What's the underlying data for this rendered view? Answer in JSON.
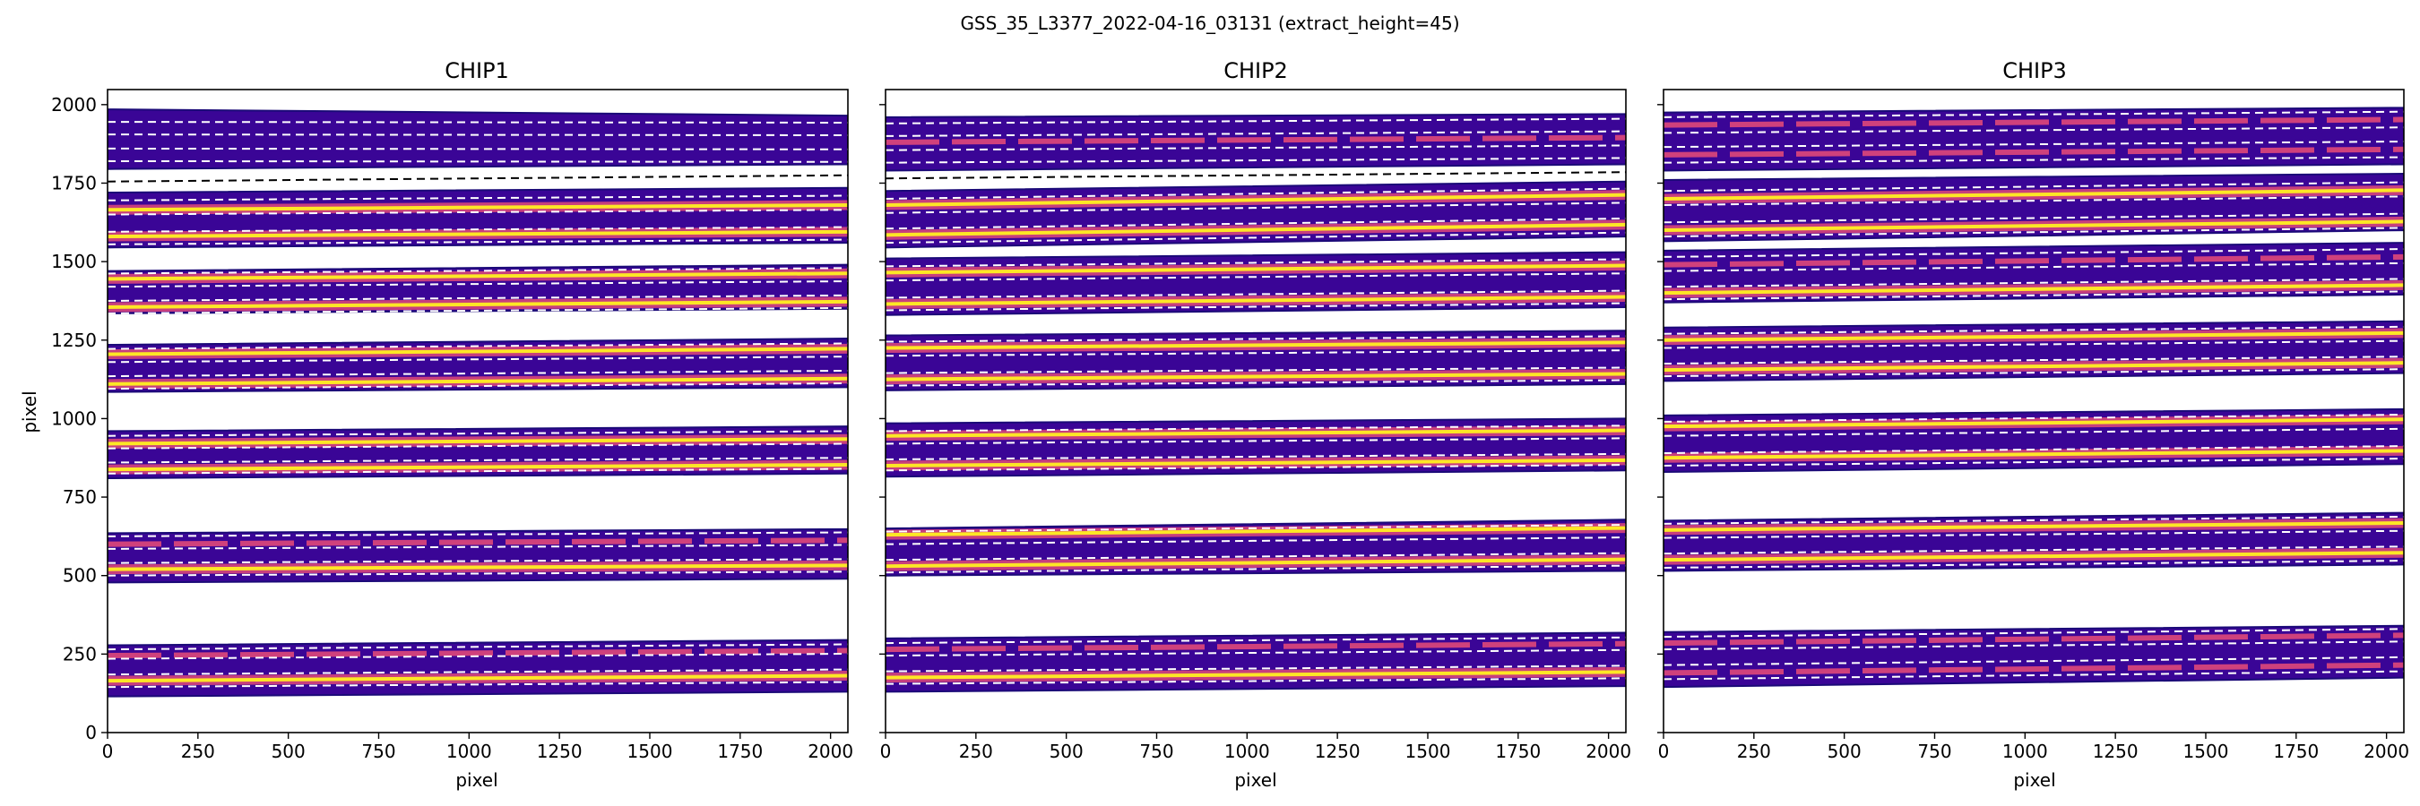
{
  "chart_data": {
    "type": "heatmap",
    "suptitle": "GSS_35_L3377_2022-04-16_03131  (extract_height=45)",
    "colormap": "plasma",
    "colors": {
      "band_fill": "#3a0596",
      "band_edge": "#1b0a78",
      "bright_line": "#fde725",
      "mid_line": "#e0487a",
      "trace_line": "#ffffff",
      "gap_trace_line": "#000000",
      "background": "#ffffff"
    },
    "shared_y": true,
    "xlim": [
      0,
      2048
    ],
    "ylim": [
      0,
      2048
    ],
    "x_ticks": [
      0,
      250,
      500,
      750,
      1000,
      1250,
      1500,
      1750,
      2000
    ],
    "y_ticks": [
      0,
      250,
      500,
      750,
      1000,
      1250,
      1500,
      1750,
      2000
    ],
    "x_tick_labels": [
      "0",
      "250",
      "500",
      "750",
      "1000",
      "1250",
      "1500",
      "1750",
      "2000"
    ],
    "y_tick_labels": [
      "0",
      "250",
      "500",
      "750",
      "1000",
      "1250",
      "1500",
      "1750",
      "2000"
    ],
    "xlabel": "pixel",
    "ylabel": "pixel",
    "panels": [
      {
        "title": "CHIP1",
        "orders": [
          {
            "y0_left": 115,
            "y0_right": 130,
            "y1_left": 278,
            "y1_right": 295,
            "traces": [
              145,
              185,
              235,
              265
            ],
            "bright": [
              165
            ],
            "mid": [
              245
            ]
          },
          {
            "y0_left": 478,
            "y0_right": 490,
            "y1_left": 635,
            "y1_right": 648,
            "traces": [
              500,
              540,
              585,
              625
            ],
            "bright": [
              520
            ],
            "mid": [
              600
            ]
          },
          {
            "y0_left": 810,
            "y0_right": 825,
            "y1_left": 960,
            "y1_right": 975,
            "traces": [
              825,
              860,
              905,
              945
            ],
            "bright": [
              838,
              920
            ],
            "mid": []
          },
          {
            "y0_left": 1085,
            "y0_right": 1100,
            "y1_left": 1235,
            "y1_right": 1255,
            "traces": [
              1095,
              1135,
              1180,
              1222
            ],
            "bright": [
              1110,
              1205
            ],
            "mid": []
          },
          {
            "y0_left": 1335,
            "y0_right": 1350,
            "y1_left": 1470,
            "y1_right": 1490,
            "traces": [
              1335,
              1375,
              1420,
              1462
            ],
            "bright": [
              1355,
              1445
            ],
            "mid": []
          },
          {
            "y0_left": 1545,
            "y0_right": 1560,
            "y1_left": 1720,
            "y1_right": 1735,
            "traces": [
              1555,
              1595,
              1650,
              1695
            ],
            "bright": [
              1580,
              1665
            ],
            "mid": []
          },
          {
            "y0_left": 1795,
            "y0_right": 1810,
            "y1_left": 1985,
            "y1_right": 1965,
            "traces": [
              1820,
              1860,
              1905,
              1945
            ],
            "bright": [],
            "mid": []
          }
        ],
        "gap_traces": [
          {
            "y_left": 1755,
            "y_right": 1775
          }
        ]
      },
      {
        "title": "CHIP2",
        "orders": [
          {
            "y0_left": 130,
            "y0_right": 148,
            "y1_left": 300,
            "y1_right": 318,
            "traces": [
              155,
              195,
              245,
              285
            ],
            "bright": [
              175
            ],
            "mid": [
              265
            ]
          },
          {
            "y0_left": 500,
            "y0_right": 515,
            "y1_left": 650,
            "y1_right": 678,
            "traces": [
              510,
              550,
              600,
              640
            ],
            "bright": [
              530,
              630
            ],
            "mid": []
          },
          {
            "y0_left": 815,
            "y0_right": 835,
            "y1_left": 985,
            "y1_right": 1000,
            "traces": [
              835,
              870,
              920,
              960
            ],
            "bright": [
              850,
              945
            ],
            "mid": []
          },
          {
            "y0_left": 1090,
            "y0_right": 1110,
            "y1_left": 1265,
            "y1_right": 1280,
            "traces": [
              1105,
              1145,
              1200,
              1245
            ],
            "bright": [
              1125,
              1225
            ],
            "mid": []
          },
          {
            "y0_left": 1330,
            "y0_right": 1355,
            "y1_left": 1510,
            "y1_right": 1530,
            "traces": [
              1345,
              1385,
              1440,
              1485
            ],
            "bright": [
              1365,
              1465
            ],
            "mid": []
          },
          {
            "y0_left": 1545,
            "y0_right": 1580,
            "y1_left": 1725,
            "y1_right": 1755,
            "traces": [
              1560,
              1605,
              1655,
              1700
            ],
            "bright": [
              1585,
              1680
            ],
            "mid": []
          },
          {
            "y0_left": 1790,
            "y0_right": 1810,
            "y1_left": 1960,
            "y1_right": 1970,
            "traces": [
              1815,
              1855,
              1900,
              1940
            ],
            "bright": [],
            "mid": [
              1880
            ]
          }
        ],
        "gap_traces": [
          {
            "y_left": 1765,
            "y_right": 1785
          }
        ]
      },
      {
        "title": "CHIP3",
        "orders": [
          {
            "y0_left": 145,
            "y0_right": 175,
            "y1_left": 320,
            "y1_right": 340,
            "traces": [
              170,
              215,
              265,
              305
            ],
            "bright": [],
            "mid": [
              190,
              285
            ]
          },
          {
            "y0_left": 515,
            "y0_right": 535,
            "y1_left": 675,
            "y1_right": 700,
            "traces": [
              525,
              570,
              620,
              665
            ],
            "bright": [
              550,
              645
            ],
            "mid": []
          },
          {
            "y0_left": 830,
            "y0_right": 855,
            "y1_left": 1010,
            "y1_right": 1030,
            "traces": [
              850,
              890,
              945,
              990
            ],
            "bright": [
              875,
              975
            ],
            "mid": []
          },
          {
            "y0_left": 1120,
            "y0_right": 1145,
            "y1_left": 1290,
            "y1_right": 1310,
            "traces": [
              1135,
              1175,
              1225,
              1270
            ],
            "bright": [
              1155,
              1250
            ],
            "mid": []
          },
          {
            "y0_left": 1370,
            "y0_right": 1395,
            "y1_left": 1535,
            "y1_right": 1560,
            "traces": [
              1380,
              1420,
              1470,
              1515
            ],
            "bright": [
              1400
            ],
            "mid": [
              1490
            ]
          },
          {
            "y0_left": 1565,
            "y0_right": 1600,
            "y1_left": 1760,
            "y1_right": 1780,
            "traces": [
              1580,
              1625,
              1680,
              1725
            ],
            "bright": [
              1600,
              1700
            ],
            "mid": []
          },
          {
            "y0_left": 1790,
            "y0_right": 1810,
            "y1_left": 1975,
            "y1_right": 1990,
            "traces": [
              1815,
              1865,
              1910,
              1960
            ],
            "bright": [],
            "mid": [
              1840,
              1935
            ]
          }
        ],
        "gap_traces": []
      }
    ]
  }
}
